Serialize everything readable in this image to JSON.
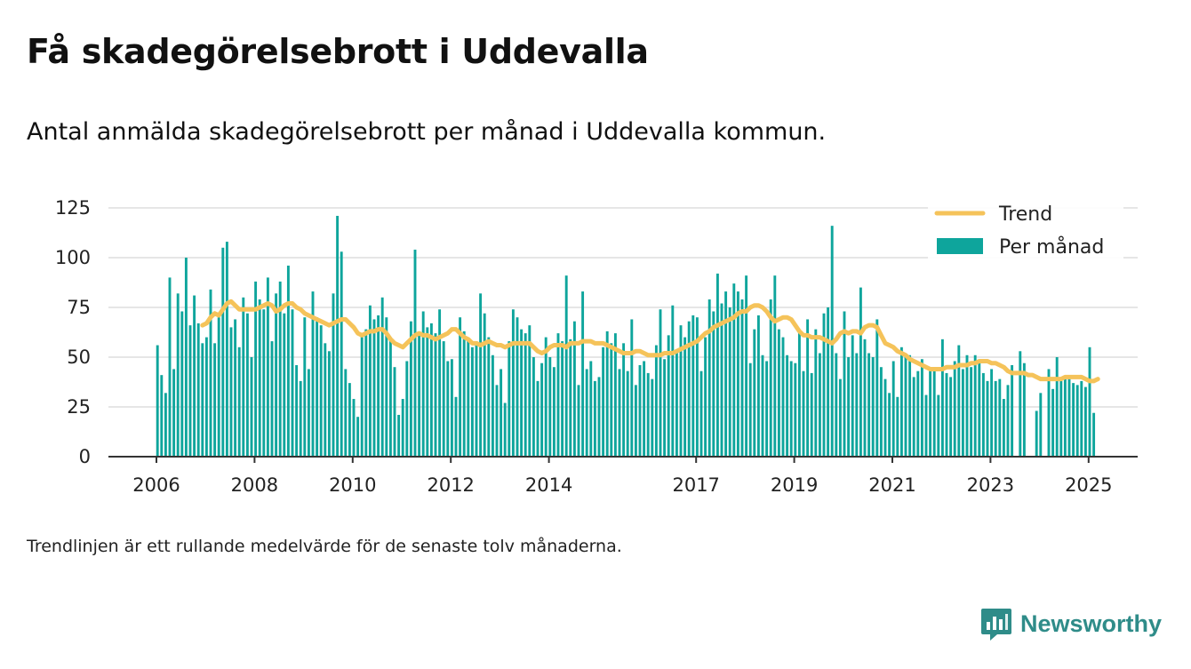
{
  "title": "Få skadegörelsebrott i Uddevalla",
  "subtitle": "Antal anmälda skadegörelsebrott per månad i Uddevalla kommun.",
  "footnote": "Trendlinjen är ett rullande medelvärde för de senaste tolv månaderna.",
  "brand": {
    "name": "Newsworthy",
    "color": "#2f8c89"
  },
  "chart_data": {
    "type": "bar",
    "x_start": "2006-01",
    "x_end": "2025-02",
    "ylim": [
      0,
      125
    ],
    "y_ticks": [
      0,
      25,
      50,
      75,
      100,
      125
    ],
    "x_ticks": [
      "2006",
      "2008",
      "2010",
      "2012",
      "2014",
      "2017",
      "2019",
      "2021",
      "2023",
      "2025"
    ],
    "grid": true,
    "legend_position": "top-right",
    "colors": {
      "bars": "#0ea59c",
      "trend": "#f5c35a"
    },
    "series": [
      {
        "name": "Per månad",
        "type": "bar",
        "values": [
          56,
          41,
          32,
          90,
          44,
          82,
          73,
          100,
          66,
          81,
          67,
          57,
          60,
          84,
          57,
          70,
          105,
          108,
          65,
          69,
          55,
          80,
          72,
          50,
          88,
          79,
          74,
          90,
          58,
          82,
          88,
          72,
          96,
          74,
          46,
          38,
          70,
          44,
          83,
          70,
          66,
          57,
          53,
          82,
          121,
          103,
          44,
          37,
          29,
          20,
          62,
          64,
          76,
          69,
          71,
          80,
          70,
          60,
          45,
          21,
          29,
          48,
          68,
          104,
          62,
          73,
          65,
          67,
          62,
          74,
          58,
          48,
          49,
          30,
          70,
          63,
          59,
          55,
          58,
          82,
          72,
          60,
          51,
          36,
          44,
          27,
          58,
          74,
          70,
          64,
          62,
          66,
          50,
          38,
          47,
          60,
          50,
          45,
          62,
          58,
          91,
          59,
          68,
          36,
          83,
          44,
          48,
          38,
          40,
          55,
          63,
          57,
          62,
          44,
          57,
          43,
          69,
          36,
          46,
          48,
          42,
          39,
          56,
          74,
          49,
          61,
          76,
          54,
          66,
          60,
          68,
          71,
          70,
          43,
          60,
          79,
          73,
          92,
          77,
          83,
          75,
          87,
          83,
          79,
          91,
          47,
          64,
          71,
          51,
          48,
          79,
          91,
          64,
          60,
          51,
          48,
          47,
          62,
          43,
          69,
          42,
          64,
          52,
          72,
          75,
          116,
          52,
          39,
          73,
          50,
          61,
          52,
          85,
          59,
          52,
          50,
          69,
          45,
          39,
          32,
          48,
          30,
          55,
          50,
          51,
          40,
          43,
          49,
          31,
          44,
          44,
          31,
          59,
          42,
          40,
          48,
          56,
          44,
          51,
          45,
          51,
          48,
          42,
          38,
          44,
          38,
          39,
          29,
          36,
          46,
          0,
          53,
          47,
          0,
          0,
          23,
          32,
          0,
          44,
          34,
          50,
          38,
          39,
          39,
          37,
          36,
          38,
          35,
          55,
          22
        ]
      },
      {
        "name": "Trend",
        "type": "line",
        "start": "2006-12",
        "values": [
          66,
          67,
          70,
          72,
          71,
          74,
          77,
          78,
          76,
          74,
          74,
          74,
          74,
          74,
          75,
          76,
          77,
          76,
          73,
          74,
          76,
          77,
          77,
          75,
          74,
          72,
          71,
          70,
          69,
          68,
          67,
          66,
          67,
          68,
          69,
          69,
          67,
          65,
          62,
          61,
          62,
          63,
          63,
          64,
          64,
          62,
          59,
          57,
          56,
          55,
          57,
          59,
          61,
          62,
          61,
          61,
          60,
          59,
          60,
          61,
          62,
          64,
          64,
          62,
          60,
          59,
          57,
          57,
          56,
          57,
          58,
          57,
          56,
          56,
          55,
          56,
          57,
          57,
          57,
          57,
          57,
          55,
          53,
          52,
          53,
          55,
          56,
          56,
          56,
          55,
          57,
          57,
          57,
          58,
          58,
          58,
          57,
          57,
          57,
          56,
          55,
          54,
          53,
          52,
          52,
          52,
          53,
          53,
          52,
          51,
          51,
          51,
          51,
          52,
          52,
          52,
          53,
          54,
          55,
          56,
          57,
          58,
          60,
          62,
          63,
          65,
          66,
          67,
          68,
          69,
          70,
          72,
          73,
          73,
          75,
          76,
          76,
          75,
          73,
          70,
          68,
          69,
          70,
          70,
          69,
          66,
          63,
          61,
          61,
          60,
          60,
          60,
          59,
          58,
          57,
          59,
          62,
          63,
          62,
          63,
          63,
          62,
          65,
          66,
          66,
          65,
          61,
          57,
          56,
          55,
          53,
          52,
          51,
          49,
          48,
          47,
          46,
          45,
          44,
          44,
          44,
          44,
          45,
          45,
          45,
          46,
          46,
          46,
          47,
          47,
          48,
          48,
          48,
          47,
          47,
          46,
          45,
          43,
          42,
          42,
          42,
          42,
          41,
          41,
          40,
          39,
          39,
          39,
          39,
          39,
          39,
          40,
          40,
          40,
          40,
          40,
          39,
          38,
          38,
          39
        ]
      }
    ]
  }
}
